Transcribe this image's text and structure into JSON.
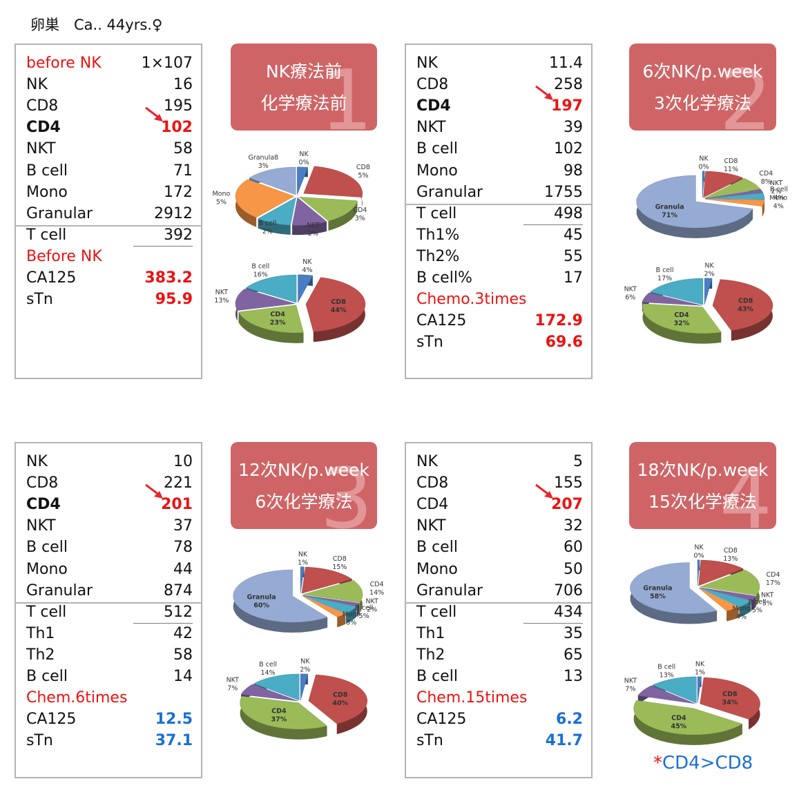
{
  "page_title": "卵巣　Ca.. 44yrs.♀",
  "colors": {
    "red": "#ee1111",
    "blue": "#1a6fd6",
    "black": "#111111",
    "banner": "#cf6466",
    "arrow": "#e8262c",
    "slices": {
      "NK": "#4a7ec4",
      "CD8": "#c0504d",
      "CD4": "#9bbb59",
      "NKT": "#8064a2",
      "B cell": "#4bacc6",
      "Mono": "#f79646",
      "Granula": "#95abd4"
    }
  },
  "panels": [
    {
      "stage_number": "1",
      "banner": [
        "NK療法前",
        "化学療法前"
      ],
      "rows": [
        {
          "label": "before NK",
          "value": "1×107",
          "label_color": "red",
          "value_color": "black",
          "bold": false
        },
        {
          "label": "NK",
          "value": "16",
          "label_color": "black",
          "value_color": "black",
          "bold": false
        },
        {
          "label": "CD8",
          "value": "195",
          "label_color": "black",
          "value_color": "black",
          "bold": false
        },
        {
          "label": "CD4",
          "value": "102",
          "label_color": "black",
          "value_color": "red",
          "bold": true,
          "arrow": true
        },
        {
          "label": "NKT",
          "value": "58",
          "label_color": "black",
          "value_color": "black",
          "bold": false
        },
        {
          "label": "B cell",
          "value": "71",
          "label_color": "black",
          "value_color": "black",
          "bold": false
        },
        {
          "label": "Mono",
          "value": "172",
          "label_color": "black",
          "value_color": "black",
          "bold": false
        },
        {
          "label": "Granular",
          "value": "2912",
          "label_color": "black",
          "value_color": "black",
          "bold": false,
          "divider_after": true
        },
        {
          "label": "T cell",
          "value": "392",
          "label_color": "black",
          "value_color": "black",
          "bold": false,
          "subline_after": true
        },
        {
          "label": "Before NK",
          "value": "",
          "label_color": "red",
          "value_color": "black",
          "bold": false
        },
        {
          "label": "CA125",
          "value": "383.2",
          "label_color": "black",
          "value_color": "red",
          "bold": false
        },
        {
          "label": "sTn",
          "value": "95.9",
          "label_color": "black",
          "value_color": "red",
          "bold": false
        }
      ]
    },
    {
      "stage_number": "2",
      "banner": [
        "6次NK/p.week",
        "3次化学療法"
      ],
      "rows": [
        {
          "label": "NK",
          "value": "11.4",
          "label_color": "black",
          "value_color": "black",
          "bold": false
        },
        {
          "label": "CD8",
          "value": "258",
          "label_color": "black",
          "value_color": "black",
          "bold": false
        },
        {
          "label": "CD4",
          "value": "197",
          "label_color": "black",
          "value_color": "red",
          "bold": true,
          "arrow": true
        },
        {
          "label": "NKT",
          "value": "39",
          "label_color": "black",
          "value_color": "black",
          "bold": false
        },
        {
          "label": "B cell",
          "value": "102",
          "label_color": "black",
          "value_color": "black",
          "bold": false
        },
        {
          "label": "Mono",
          "value": "98",
          "label_color": "black",
          "value_color": "black",
          "bold": false
        },
        {
          "label": "Granular",
          "value": "1755",
          "label_color": "black",
          "value_color": "black",
          "bold": false,
          "divider_after": true
        },
        {
          "label": "T cell",
          "value": "498",
          "label_color": "black",
          "value_color": "black",
          "bold": false,
          "subline_before": true
        },
        {
          "label": "Th1%",
          "value": "45",
          "label_color": "black",
          "value_color": "black",
          "bold": false
        },
        {
          "label": "Th2%",
          "value": "55",
          "label_color": "black",
          "value_color": "black",
          "bold": false
        },
        {
          "label": "B cell%",
          "value": "17",
          "label_color": "black",
          "value_color": "black",
          "bold": false
        },
        {
          "label": "Chemo.3times",
          "value": "",
          "label_color": "red",
          "value_color": "black",
          "bold": false
        },
        {
          "label": "CA125",
          "value": "172.9",
          "label_color": "black",
          "value_color": "red",
          "bold": false
        },
        {
          "label": "sTn",
          "value": "69.6",
          "label_color": "black",
          "value_color": "red",
          "bold": false
        }
      ]
    },
    {
      "stage_number": "3",
      "banner": [
        "12次NK/p.week",
        "6次化学療法"
      ],
      "rows": [
        {
          "label": "NK",
          "value": "10",
          "label_color": "black",
          "value_color": "black",
          "bold": false
        },
        {
          "label": "CD8",
          "value": "221",
          "label_color": "black",
          "value_color": "black",
          "bold": false
        },
        {
          "label": "CD4",
          "value": "201",
          "label_color": "black",
          "value_color": "red",
          "bold": true,
          "arrow": true
        },
        {
          "label": "NKT",
          "value": "37",
          "label_color": "black",
          "value_color": "black",
          "bold": false
        },
        {
          "label": "B cell",
          "value": "78",
          "label_color": "black",
          "value_color": "black",
          "bold": false
        },
        {
          "label": "Mono",
          "value": "44",
          "label_color": "black",
          "value_color": "black",
          "bold": false
        },
        {
          "label": "Granular",
          "value": "874",
          "label_color": "black",
          "value_color": "black",
          "bold": false,
          "divider_after": true
        },
        {
          "label": "T cell",
          "value": "512",
          "label_color": "black",
          "value_color": "black",
          "bold": false,
          "subline_after": true
        },
        {
          "label": "Th1",
          "value": "42",
          "label_color": "black",
          "value_color": "black",
          "bold": false
        },
        {
          "label": "Th2",
          "value": "58",
          "label_color": "black",
          "value_color": "black",
          "bold": false
        },
        {
          "label": "B cell",
          "value": "14",
          "label_color": "black",
          "value_color": "black",
          "bold": false
        },
        {
          "label": "Chem.6times",
          "value": "",
          "label_color": "red",
          "value_color": "black",
          "bold": false
        },
        {
          "label": "CA125",
          "value": "12.5",
          "label_color": "black",
          "value_color": "blue",
          "bold": false
        },
        {
          "label": "sTn",
          "value": "37.1",
          "label_color": "black",
          "value_color": "blue",
          "bold": false
        }
      ]
    },
    {
      "stage_number": "4",
      "banner": [
        "18次NK/p.week",
        "15次化学療法"
      ],
      "rows": [
        {
          "label": "NK",
          "value": "5",
          "label_color": "black",
          "value_color": "black",
          "bold": false
        },
        {
          "label": "CD8",
          "value": "155",
          "label_color": "black",
          "value_color": "black",
          "bold": false
        },
        {
          "label": "CD4",
          "value": "207",
          "label_color": "black",
          "value_color": "red",
          "bold": false,
          "arrow": true
        },
        {
          "label": "NKT",
          "value": "32",
          "label_color": "black",
          "value_color": "black",
          "bold": false
        },
        {
          "label": "B cell",
          "value": "60",
          "label_color": "black",
          "value_color": "black",
          "bold": false
        },
        {
          "label": "Mono",
          "value": "50",
          "label_color": "black",
          "value_color": "black",
          "bold": false
        },
        {
          "label": "Granular",
          "value": "706",
          "label_color": "black",
          "value_color": "black",
          "bold": false,
          "divider_after": true
        },
        {
          "label": "T cell",
          "value": "434",
          "label_color": "black",
          "value_color": "black",
          "bold": false,
          "subline_after": true
        },
        {
          "label": "Th1",
          "value": "35",
          "label_color": "black",
          "value_color": "black",
          "bold": false
        },
        {
          "label": "Th2",
          "value": "65",
          "label_color": "black",
          "value_color": "black",
          "bold": false
        },
        {
          "label": "B cell",
          "value": "13",
          "label_color": "black",
          "value_color": "black",
          "bold": false
        },
        {
          "label": "Chem.15times",
          "value": "",
          "label_color": "red",
          "value_color": "black",
          "bold": false
        },
        {
          "label": "CA125",
          "value": "6.2",
          "label_color": "black",
          "value_color": "blue",
          "bold": false
        },
        {
          "label": "sTn",
          "value": "41.7",
          "label_color": "black",
          "value_color": "blue",
          "bold": false
        }
      ]
    }
  ],
  "footnote": {
    "star": "*",
    "text": "CD4>CD8"
  },
  "chart_data": [
    {
      "type": "pie",
      "panel": "1",
      "categories": [
        "NK",
        "CD8",
        "CD4",
        "NKT",
        "B cell",
        "Mono",
        "Granula8"
      ],
      "values": [
        0,
        5,
        3,
        2,
        2,
        5,
        3
      ],
      "labels": [
        "0%",
        "5%",
        "3%",
        "2%",
        "2%",
        "5%",
        "3%"
      ]
    },
    {
      "type": "pie",
      "panel": "1",
      "categories": [
        "NK",
        "CD8",
        "CD4",
        "NKT",
        "B cell"
      ],
      "values": [
        4,
        44,
        23,
        13,
        16
      ],
      "labels": [
        "4%",
        "44%",
        "23%",
        "13%",
        "16%"
      ]
    },
    {
      "type": "pie",
      "panel": "2",
      "categories": [
        "NK",
        "CD8",
        "CD4",
        "NKT",
        "B cell",
        "Mono",
        "Granula"
      ],
      "values": [
        0,
        11,
        8,
        2,
        4,
        4,
        71
      ],
      "labels": [
        "0%",
        "11%",
        "8%",
        "2%",
        "4%",
        "4%",
        "71%"
      ]
    },
    {
      "type": "pie",
      "panel": "2",
      "categories": [
        "NK",
        "CD8",
        "CD4",
        "NKT",
        "B cell"
      ],
      "values": [
        2,
        43,
        32,
        6,
        17
      ],
      "labels": [
        "2%",
        "43%",
        "32%",
        "6%",
        "17%"
      ]
    },
    {
      "type": "pie",
      "panel": "3",
      "categories": [
        "NK",
        "CD8",
        "CD4",
        "NKT",
        "B cell",
        "Mono",
        "Granula"
      ],
      "values": [
        1,
        15,
        14,
        2,
        5,
        3,
        60
      ],
      "labels": [
        "1%",
        "15%",
        "14%",
        "2%",
        "5%",
        "3%",
        "60%"
      ]
    },
    {
      "type": "pie",
      "panel": "3",
      "categories": [
        "NK",
        "CD8",
        "CD4",
        "NKT",
        "B cell"
      ],
      "values": [
        2,
        40,
        37,
        7,
        14
      ],
      "labels": [
        "2%",
        "40%",
        "37%",
        "7%",
        "14%"
      ]
    },
    {
      "type": "pie",
      "panel": "4",
      "categories": [
        "NK",
        "CD8",
        "CD4",
        "NKT",
        "B cell",
        "Mono",
        "Granula"
      ],
      "values": [
        0,
        13,
        17,
        3,
        5,
        4,
        58
      ],
      "labels": [
        "0%",
        "13%",
        "17%",
        "3%",
        "5%",
        "4%",
        "58%"
      ]
    },
    {
      "type": "pie",
      "panel": "4",
      "categories": [
        "NK",
        "CD8",
        "CD4",
        "NKT",
        "B cell"
      ],
      "values": [
        1,
        34,
        45,
        7,
        13
      ],
      "labels": [
        "1%",
        "34%",
        "45%",
        "7%",
        "13%"
      ]
    }
  ]
}
